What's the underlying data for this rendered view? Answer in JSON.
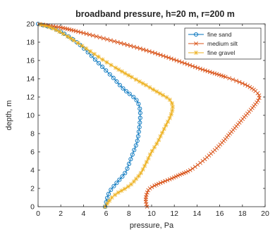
{
  "chart_data": {
    "type": "line",
    "title": "broadband pressure, h=20 m, r=200 m",
    "xlabel": "pressure, Pa",
    "ylabel": "depth, m",
    "xlim": [
      0,
      20
    ],
    "ylim": [
      0,
      20
    ],
    "xticks": [
      "0",
      "2",
      "4",
      "6",
      "8",
      "10",
      "12",
      "14",
      "16",
      "18",
      "20"
    ],
    "yticks": [
      "0",
      "2",
      "4",
      "6",
      "8",
      "10",
      "12",
      "14",
      "16",
      "18",
      "20"
    ],
    "grid": false,
    "legend": "top-right",
    "series": [
      {
        "name": "fine sand",
        "color": "#0072BD",
        "marker": "circle",
        "points": [
          [
            5.9,
            0
          ],
          [
            6.0,
            0.5
          ],
          [
            6.1,
            1
          ],
          [
            6.25,
            1.5
          ],
          [
            6.5,
            2
          ],
          [
            6.85,
            2.5
          ],
          [
            7.2,
            3
          ],
          [
            7.55,
            3.5
          ],
          [
            7.8,
            4
          ],
          [
            8.1,
            5
          ],
          [
            8.4,
            6
          ],
          [
            8.7,
            7
          ],
          [
            8.85,
            8
          ],
          [
            8.95,
            9
          ],
          [
            9.0,
            10
          ],
          [
            8.95,
            10.8
          ],
          [
            8.75,
            11.5
          ],
          [
            8.4,
            12
          ],
          [
            7.7,
            12.7
          ],
          [
            7.2,
            13.3
          ],
          [
            6.7,
            14
          ],
          [
            5.9,
            15
          ],
          [
            5.1,
            16
          ],
          [
            4.3,
            17
          ],
          [
            3.4,
            18
          ],
          [
            2.2,
            19
          ],
          [
            1.2,
            19.6
          ],
          [
            0,
            20
          ]
        ]
      },
      {
        "name": "medium silt",
        "color": "#D95319",
        "marker": "x",
        "points": [
          [
            9.6,
            0
          ],
          [
            9.5,
            0.5
          ],
          [
            9.5,
            1
          ],
          [
            9.6,
            1.5
          ],
          [
            9.85,
            2
          ],
          [
            10.6,
            2.5
          ],
          [
            11.6,
            3
          ],
          [
            12.5,
            3.5
          ],
          [
            13.4,
            4
          ],
          [
            14.5,
            5
          ],
          [
            15.4,
            6
          ],
          [
            16.2,
            7
          ],
          [
            16.9,
            8
          ],
          [
            17.6,
            9
          ],
          [
            18.3,
            10
          ],
          [
            19.0,
            11
          ],
          [
            19.5,
            12
          ],
          [
            19.0,
            12.8
          ],
          [
            18.0,
            13.5
          ],
          [
            16.5,
            14.2
          ],
          [
            14.5,
            15
          ],
          [
            12.2,
            16
          ],
          [
            9.8,
            17
          ],
          [
            7.0,
            18
          ],
          [
            4.0,
            19
          ],
          [
            2.0,
            19.6
          ],
          [
            0,
            20
          ]
        ]
      },
      {
        "name": "fine gravel",
        "color": "#EDB120",
        "marker": "star",
        "points": [
          [
            5.9,
            0
          ],
          [
            6.2,
            0.5
          ],
          [
            6.5,
            1
          ],
          [
            7.0,
            1.5
          ],
          [
            7.7,
            2
          ],
          [
            8.25,
            2.5
          ],
          [
            8.6,
            3
          ],
          [
            8.95,
            3.5
          ],
          [
            9.2,
            4
          ],
          [
            9.6,
            5
          ],
          [
            10.0,
            6
          ],
          [
            10.5,
            7
          ],
          [
            10.9,
            8
          ],
          [
            11.3,
            9
          ],
          [
            11.7,
            10
          ],
          [
            11.85,
            11
          ],
          [
            11.6,
            11.7
          ],
          [
            11.0,
            12.2
          ],
          [
            10.3,
            12.7
          ],
          [
            9.5,
            13.3
          ],
          [
            8.5,
            14
          ],
          [
            7.1,
            15
          ],
          [
            5.8,
            16
          ],
          [
            4.6,
            17
          ],
          [
            3.4,
            18
          ],
          [
            2.1,
            19
          ],
          [
            1.1,
            19.6
          ],
          [
            0,
            20
          ]
        ]
      }
    ]
  }
}
